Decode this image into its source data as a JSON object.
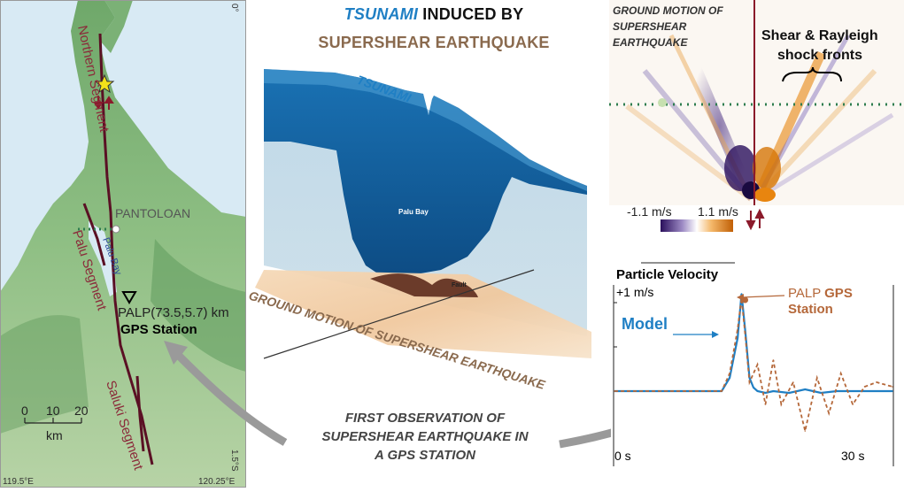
{
  "title": {
    "tsunami_word": "TSUNAMI",
    "line1_rest": " INDUCED BY",
    "line2": "SUPERSHEAR EARTHQUAKE"
  },
  "map": {
    "lat_label": "0°",
    "lat_label_bottom": "1.5°S",
    "lon_left": "119.5°E",
    "lon_right": "120.25°E",
    "segments": [
      "Northern Segment",
      "Palu Segment",
      "Saluki Segment"
    ],
    "pantoloan": "PANTOLOAN",
    "palu_bay": "Palu Bay",
    "palp": "PALP(73.5,5.7) km",
    "gps_station": "GPS Station",
    "scale_ticks": [
      "0",
      "10",
      "20"
    ],
    "scale_unit": "km"
  },
  "center": {
    "tsunami_label": "TSUNAMI",
    "palu_bay_label": "Palu Bay",
    "fault_label": "Fault",
    "ground_motion_label": "GROUND MOTION OF SUPERSHEAR EARTHQUAKE"
  },
  "ground_motion_panel": {
    "title_lines": [
      "GROUND MOTION OF",
      "SUPERSHEAR",
      "EARTHQUAKE"
    ],
    "shock_lines": [
      "Shear & Rayleigh",
      "shock fronts"
    ],
    "cbar_min": "-1.1 m/s",
    "cbar_max": "1.1 m/s",
    "colors": {
      "negative": "#3b1f7a",
      "positive": "#e8850f",
      "fault": "#8b1a2b"
    }
  },
  "first_observation": {
    "lines": [
      "FIRST OBSERVATION OF",
      "SUPERSHEAR EARTHQUAKE IN",
      "A GPS STATION"
    ]
  },
  "chart_data": {
    "type": "line",
    "title": "Particle Velocity",
    "y_tick_label": "+1 m/s",
    "x_ticks": [
      "0 s",
      "30 s"
    ],
    "xlim": [
      0,
      35
    ],
    "ylim": [
      -0.5,
      1.2
    ],
    "series": [
      {
        "name": "Model",
        "color": "#1f7fc4",
        "style": "solid",
        "x": [
          0,
          13.5,
          14.5,
          15.5,
          16.0,
          16.5,
          17.0,
          17.5,
          18.0,
          19.0,
          20.0,
          22.0,
          24.0,
          26.0,
          28.0,
          30.0,
          32.0,
          35.0
        ],
        "y": [
          0.0,
          0.0,
          0.15,
          0.6,
          1.1,
          0.65,
          0.15,
          0.04,
          0.0,
          -0.02,
          0.0,
          -0.02,
          0.02,
          -0.02,
          0.0,
          0.0,
          0.0,
          0.0
        ]
      },
      {
        "name": "PALP GPS Station",
        "color": "#b5683a",
        "style": "dashed",
        "x": [
          0,
          13.5,
          14.5,
          15.5,
          16.0,
          16.5,
          17.0,
          18.0,
          19.0,
          20.0,
          21.0,
          22.5,
          24.0,
          25.5,
          27.0,
          28.5,
          30.0,
          31.5,
          33.0,
          35.0
        ],
        "y": [
          0.0,
          0.0,
          0.2,
          0.7,
          1.05,
          0.6,
          0.1,
          0.3,
          -0.15,
          0.35,
          -0.15,
          0.1,
          -0.45,
          0.15,
          -0.25,
          0.2,
          -0.15,
          0.05,
          0.1,
          0.05
        ]
      }
    ],
    "legend": {
      "model": "Model",
      "palp_prefix": "PALP ",
      "palp_bold": "GPS",
      "palp_station": "Station"
    }
  }
}
